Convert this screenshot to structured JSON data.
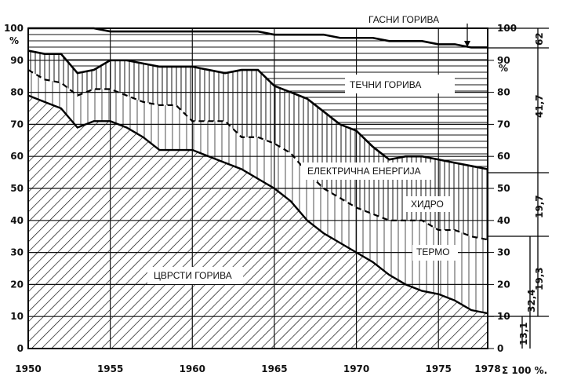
{
  "chart_data": {
    "type": "area",
    "x": [
      1950,
      1951,
      1952,
      1953,
      1954,
      1955,
      1956,
      1957,
      1958,
      1959,
      1960,
      1961,
      1962,
      1963,
      1964,
      1965,
      1966,
      1967,
      1968,
      1969,
      1970,
      1971,
      1972,
      1973,
      1974,
      1975,
      1976,
      1977,
      1978
    ],
    "series": [
      {
        "name": "ЦВРСТИ ГОРИВА",
        "values": [
          79,
          77,
          75,
          69,
          71,
          71,
          69,
          66,
          62,
          62,
          62,
          60,
          58,
          56,
          53,
          50,
          46,
          40,
          36,
          33,
          30,
          27,
          23,
          20,
          18,
          17,
          15,
          12,
          11
        ]
      },
      {
        "name": "ТЕРМО",
        "values": [
          87,
          84,
          83,
          79,
          81,
          81,
          79,
          77,
          76,
          76,
          71,
          71,
          71,
          66,
          66,
          64,
          61,
          55,
          50,
          47,
          44,
          42,
          40,
          40,
          40,
          37,
          37,
          35,
          34
        ]
      },
      {
        "name": "ХИДРО",
        "values": [
          93,
          92,
          92,
          86,
          87,
          90,
          90,
          89,
          88,
          88,
          88,
          87,
          86,
          87,
          87,
          82,
          80,
          78,
          74,
          70,
          68,
          63,
          59,
          60,
          60,
          59,
          58,
          57,
          56
        ]
      },
      {
        "name": "ЕЛЕКТРИЧНА ЕНЕРГИЈА",
        "values": [
          93,
          92,
          92,
          86,
          87,
          90,
          90,
          89,
          88,
          88,
          88,
          87,
          86,
          87,
          87,
          82,
          80,
          78,
          74,
          70,
          68,
          63,
          59,
          60,
          60,
          59,
          58,
          57,
          56
        ]
      },
      {
        "name": "ТЕЧНИ ГОРИВА",
        "values": [
          100,
          100,
          100,
          100,
          100,
          99,
          99,
          99,
          99,
          99,
          99,
          99,
          99,
          99,
          99,
          98,
          98,
          98,
          98,
          97,
          97,
          97,
          96,
          96,
          96,
          95,
          95,
          94,
          94
        ]
      },
      {
        "name": "ГАСНИ ГОРИВА",
        "values": [
          100,
          100,
          100,
          100,
          100,
          100,
          100,
          100,
          100,
          100,
          100,
          100,
          100,
          100,
          100,
          100,
          100,
          100,
          100,
          100,
          100,
          100,
          100,
          100,
          100,
          100,
          100,
          100,
          100
        ]
      }
    ],
    "xticks": [
      "1950",
      "1955",
      "1960",
      "1965",
      "1970",
      "1975",
      "1978"
    ],
    "yticks_left": [
      "0",
      "10",
      "20",
      "30",
      "40",
      "50",
      "60",
      "70",
      "80",
      "90",
      "100"
    ],
    "ylabel_left": "%",
    "right_axis": {
      "ticks": [
        "0",
        "10",
        "20",
        "30",
        "40",
        "50",
        "60",
        "70",
        "80",
        "90",
        "100"
      ],
      "unit": "%",
      "sum_label": "Σ 100 %.",
      "brackets": [
        "62",
        "41,7",
        "19,7",
        "19,3",
        "32,4",
        "13,1"
      ]
    },
    "ylim": [
      0,
      100
    ],
    "xlim": [
      1950,
      1978
    ],
    "grid": true
  }
}
